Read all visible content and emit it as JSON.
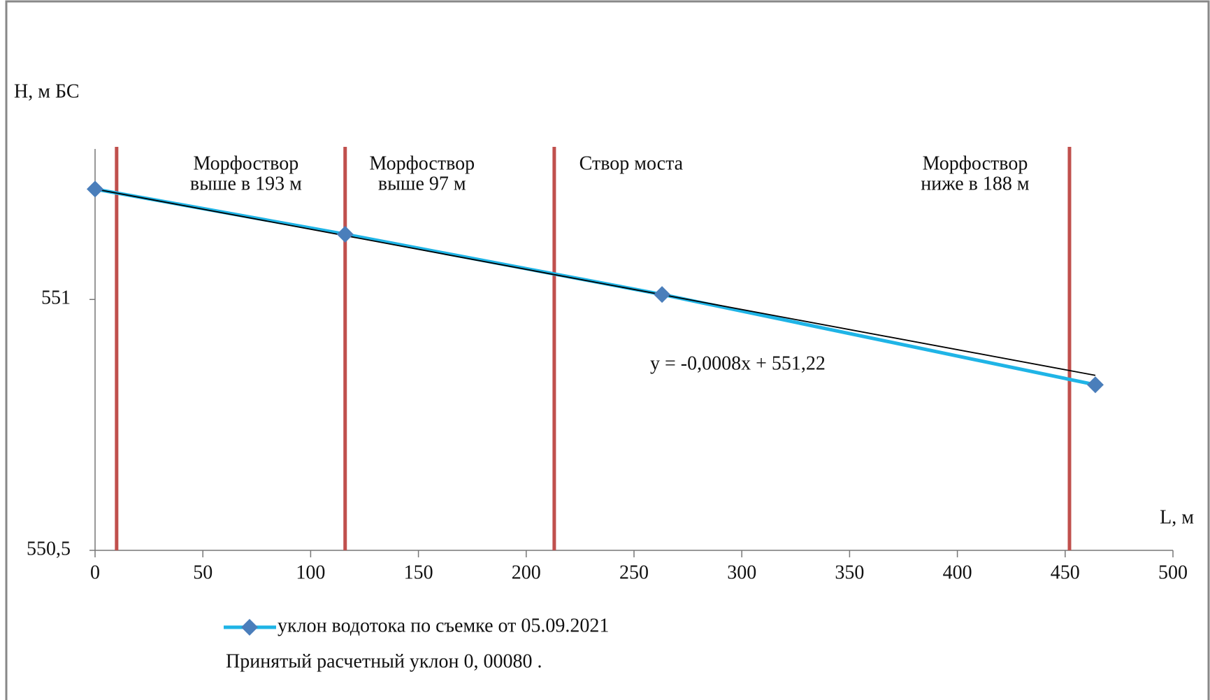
{
  "chart_data": {
    "type": "line",
    "y_label": "H, м БС",
    "x_label": "L, м",
    "x": [
      0,
      116,
      263,
      464
    ],
    "series": [
      {
        "name": "уклон водотока по съемке от 05.09.2021",
        "color": "#1fb4e6",
        "marker_color": "#4a7ebb",
        "values": [
          551.22,
          551.13,
          551.01,
          550.83
        ]
      }
    ],
    "trendline": {
      "label": "y = -0,0008x + 551,22",
      "slope": -0.0008,
      "intercept": 551.22,
      "color": "#000000"
    },
    "markers": [
      {
        "x": 10,
        "lines": [
          "Морфоствор",
          "выше в  193 м"
        ]
      },
      {
        "x": 116,
        "lines": [
          "Морфоствор",
          "выше 97 м"
        ]
      },
      {
        "x": 213,
        "lines": [
          "Створ  моста"
        ]
      },
      {
        "x": 452,
        "lines": [
          "Морфоствор",
          "ниже в 188 м"
        ]
      }
    ],
    "marker_color": "#c0504d",
    "xlim": [
      0,
      500
    ],
    "xticks": [
      0,
      50,
      100,
      150,
      200,
      250,
      300,
      350,
      400,
      450,
      500
    ],
    "ylim": [
      550.5,
      551.3
    ],
    "yticks": [
      {
        "value": 550.5,
        "label": "550,5"
      },
      551
    ],
    "note": "Принятый  расчетный  уклон  0, 00080 ."
  }
}
